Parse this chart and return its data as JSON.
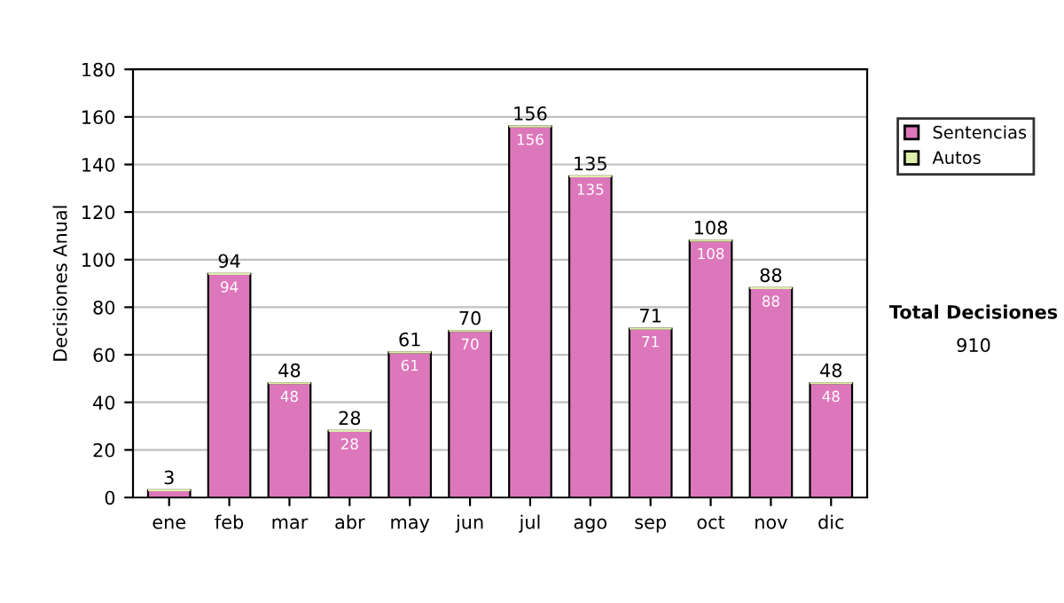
{
  "chart_data": {
    "type": "bar",
    "ylabel": "Decisiones Anual",
    "categories": [
      "ene",
      "feb",
      "mar",
      "abr",
      "may",
      "jun",
      "jul",
      "ago",
      "sep",
      "oct",
      "nov",
      "dic"
    ],
    "series": [
      {
        "name": "Sentencias",
        "color": "#dd77bb",
        "values": [
          3,
          94,
          48,
          28,
          61,
          70,
          156,
          135,
          71,
          108,
          88,
          48
        ],
        "value_labels": [
          null,
          "94",
          "48",
          "28",
          "61",
          "70",
          "156",
          "135",
          "71",
          "108",
          "88",
          "48"
        ]
      },
      {
        "name": "Autos",
        "color": "#ddeeaa",
        "values": [
          0,
          0,
          0,
          0,
          0,
          0,
          0,
          0,
          0,
          0,
          0,
          0
        ]
      }
    ],
    "stacked": true,
    "totals": [
      "3",
      "94",
      "48",
      "28",
      "61",
      "70",
      "156",
      "135",
      "71",
      "108",
      "88",
      "48"
    ],
    "ylim": [
      0,
      180
    ],
    "yticks": [
      0,
      20,
      40,
      60,
      80,
      100,
      120,
      140,
      160,
      180
    ],
    "grid": "y",
    "legend": "right",
    "annotations": [
      "Total Decisiones",
      "910"
    ]
  }
}
